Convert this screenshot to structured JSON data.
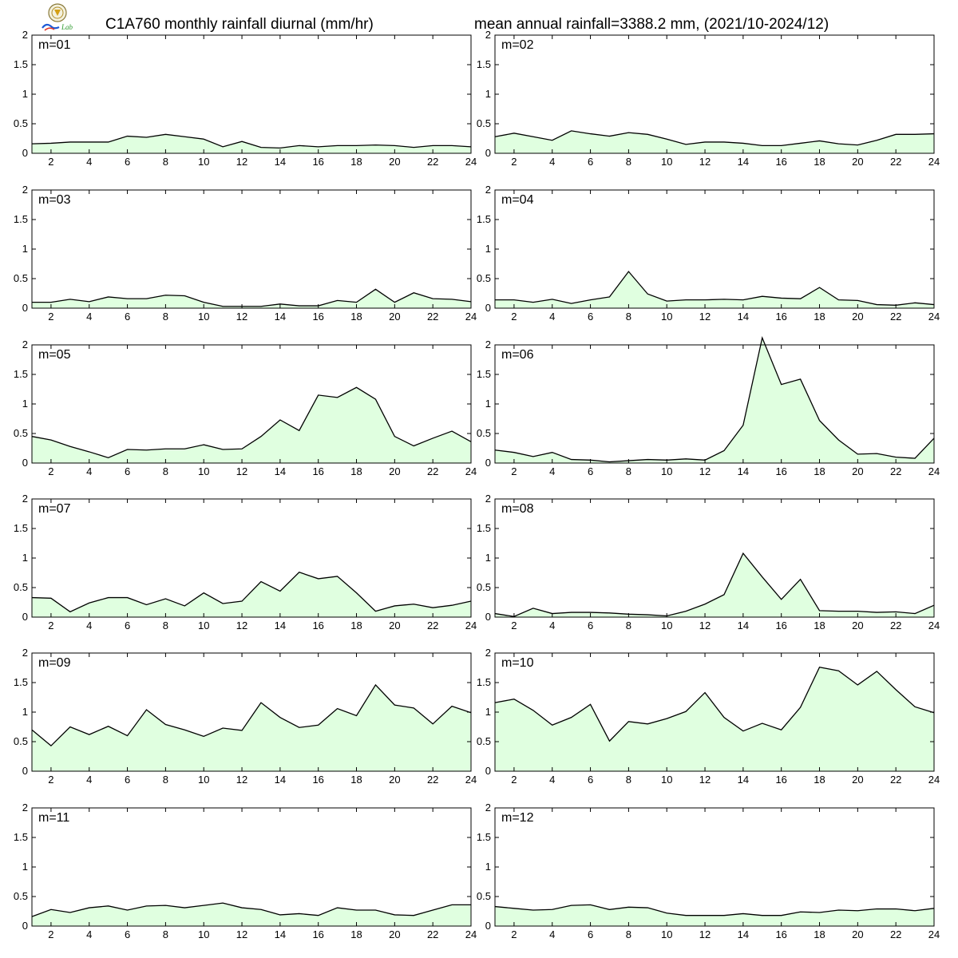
{
  "title": "C1A760 monthly rainfall diurnal (mm/hr)",
  "subtitle": "mean annual rainfall=3388.2 mm, (2021/10-2024/12)",
  "logo_text": "Lab",
  "colors": {
    "fill": "#e0ffe0",
    "line": "#000000",
    "frame": "#000000"
  },
  "chart_data": {
    "type": "area",
    "layout": "small multiples, 6 rows x 2 columns",
    "x": [
      1,
      2,
      3,
      4,
      5,
      6,
      7,
      8,
      9,
      10,
      11,
      12,
      13,
      14,
      15,
      16,
      17,
      18,
      19,
      20,
      21,
      22,
      23,
      24
    ],
    "xlim": [
      1,
      24
    ],
    "ylim": [
      0,
      2
    ],
    "x_ticks": [
      2,
      4,
      6,
      8,
      10,
      12,
      14,
      16,
      18,
      20,
      22,
      24
    ],
    "y_ticks": [
      0,
      0.5,
      1,
      1.5,
      2
    ],
    "y_tick_labels": [
      "0",
      "0.5",
      "1",
      "1.5",
      "2"
    ],
    "grid": false,
    "panels": [
      {
        "label": "m=01",
        "values": [
          0.16,
          0.17,
          0.19,
          0.19,
          0.19,
          0.29,
          0.27,
          0.32,
          0.28,
          0.24,
          0.11,
          0.2,
          0.1,
          0.09,
          0.13,
          0.11,
          0.13,
          0.13,
          0.14,
          0.13,
          0.1,
          0.13,
          0.13,
          0.11
        ]
      },
      {
        "label": "m=02",
        "values": [
          0.28,
          0.34,
          0.28,
          0.22,
          0.38,
          0.33,
          0.29,
          0.35,
          0.32,
          0.24,
          0.15,
          0.19,
          0.19,
          0.17,
          0.13,
          0.13,
          0.17,
          0.21,
          0.16,
          0.14,
          0.22,
          0.32,
          0.32,
          0.33
        ]
      },
      {
        "label": "m=03",
        "values": [
          0.1,
          0.1,
          0.15,
          0.11,
          0.19,
          0.16,
          0.16,
          0.22,
          0.21,
          0.1,
          0.03,
          0.03,
          0.03,
          0.07,
          0.04,
          0.04,
          0.13,
          0.1,
          0.32,
          0.1,
          0.26,
          0.16,
          0.15,
          0.11
        ]
      },
      {
        "label": "m=04",
        "values": [
          0.14,
          0.14,
          0.1,
          0.15,
          0.08,
          0.14,
          0.19,
          0.62,
          0.24,
          0.12,
          0.14,
          0.14,
          0.15,
          0.14,
          0.2,
          0.17,
          0.16,
          0.35,
          0.14,
          0.13,
          0.06,
          0.05,
          0.09,
          0.06
        ]
      },
      {
        "label": "m=05",
        "values": [
          0.45,
          0.39,
          0.28,
          0.19,
          0.09,
          0.23,
          0.22,
          0.24,
          0.24,
          0.31,
          0.23,
          0.24,
          0.45,
          0.73,
          0.55,
          1.15,
          1.11,
          1.28,
          1.08,
          0.45,
          0.29,
          0.42,
          0.54,
          0.36
        ]
      },
      {
        "label": "m=06",
        "values": [
          0.22,
          0.18,
          0.11,
          0.18,
          0.06,
          0.05,
          0.02,
          0.04,
          0.06,
          0.05,
          0.07,
          0.05,
          0.21,
          0.64,
          2.12,
          1.33,
          1.42,
          0.72,
          0.39,
          0.15,
          0.16,
          0.1,
          0.08,
          0.42
        ]
      },
      {
        "label": "m=07",
        "values": [
          0.33,
          0.32,
          0.09,
          0.24,
          0.33,
          0.33,
          0.21,
          0.31,
          0.19,
          0.41,
          0.23,
          0.27,
          0.6,
          0.44,
          0.76,
          0.65,
          0.69,
          0.41,
          0.1,
          0.19,
          0.22,
          0.16,
          0.2,
          0.27
        ]
      },
      {
        "label": "m=08",
        "values": [
          0.06,
          0.01,
          0.15,
          0.06,
          0.08,
          0.08,
          0.07,
          0.05,
          0.04,
          0.02,
          0.1,
          0.22,
          0.38,
          1.08,
          0.68,
          0.3,
          0.64,
          0.11,
          0.1,
          0.1,
          0.08,
          0.09,
          0.06,
          0.2
        ]
      },
      {
        "label": "m=09",
        "values": [
          0.7,
          0.43,
          0.75,
          0.62,
          0.76,
          0.6,
          1.04,
          0.79,
          0.7,
          0.59,
          0.73,
          0.69,
          1.16,
          0.91,
          0.74,
          0.78,
          1.06,
          0.94,
          1.46,
          1.12,
          1.07,
          0.8,
          1.1,
          0.99
        ]
      },
      {
        "label": "m=10",
        "values": [
          1.16,
          1.22,
          1.03,
          0.78,
          0.91,
          1.13,
          0.51,
          0.84,
          0.8,
          0.89,
          1.01,
          1.33,
          0.91,
          0.68,
          0.81,
          0.7,
          1.08,
          1.76,
          1.7,
          1.46,
          1.69,
          1.38,
          1.09,
          0.99
        ]
      },
      {
        "label": "m=11",
        "values": [
          0.16,
          0.28,
          0.23,
          0.31,
          0.34,
          0.27,
          0.34,
          0.35,
          0.31,
          0.35,
          0.39,
          0.31,
          0.28,
          0.19,
          0.21,
          0.18,
          0.31,
          0.27,
          0.27,
          0.19,
          0.18,
          0.27,
          0.36,
          0.36
        ]
      },
      {
        "label": "m=12",
        "values": [
          0.33,
          0.3,
          0.27,
          0.28,
          0.35,
          0.36,
          0.28,
          0.32,
          0.31,
          0.22,
          0.18,
          0.18,
          0.18,
          0.21,
          0.18,
          0.18,
          0.24,
          0.23,
          0.27,
          0.26,
          0.29,
          0.29,
          0.26,
          0.3
        ]
      }
    ]
  }
}
